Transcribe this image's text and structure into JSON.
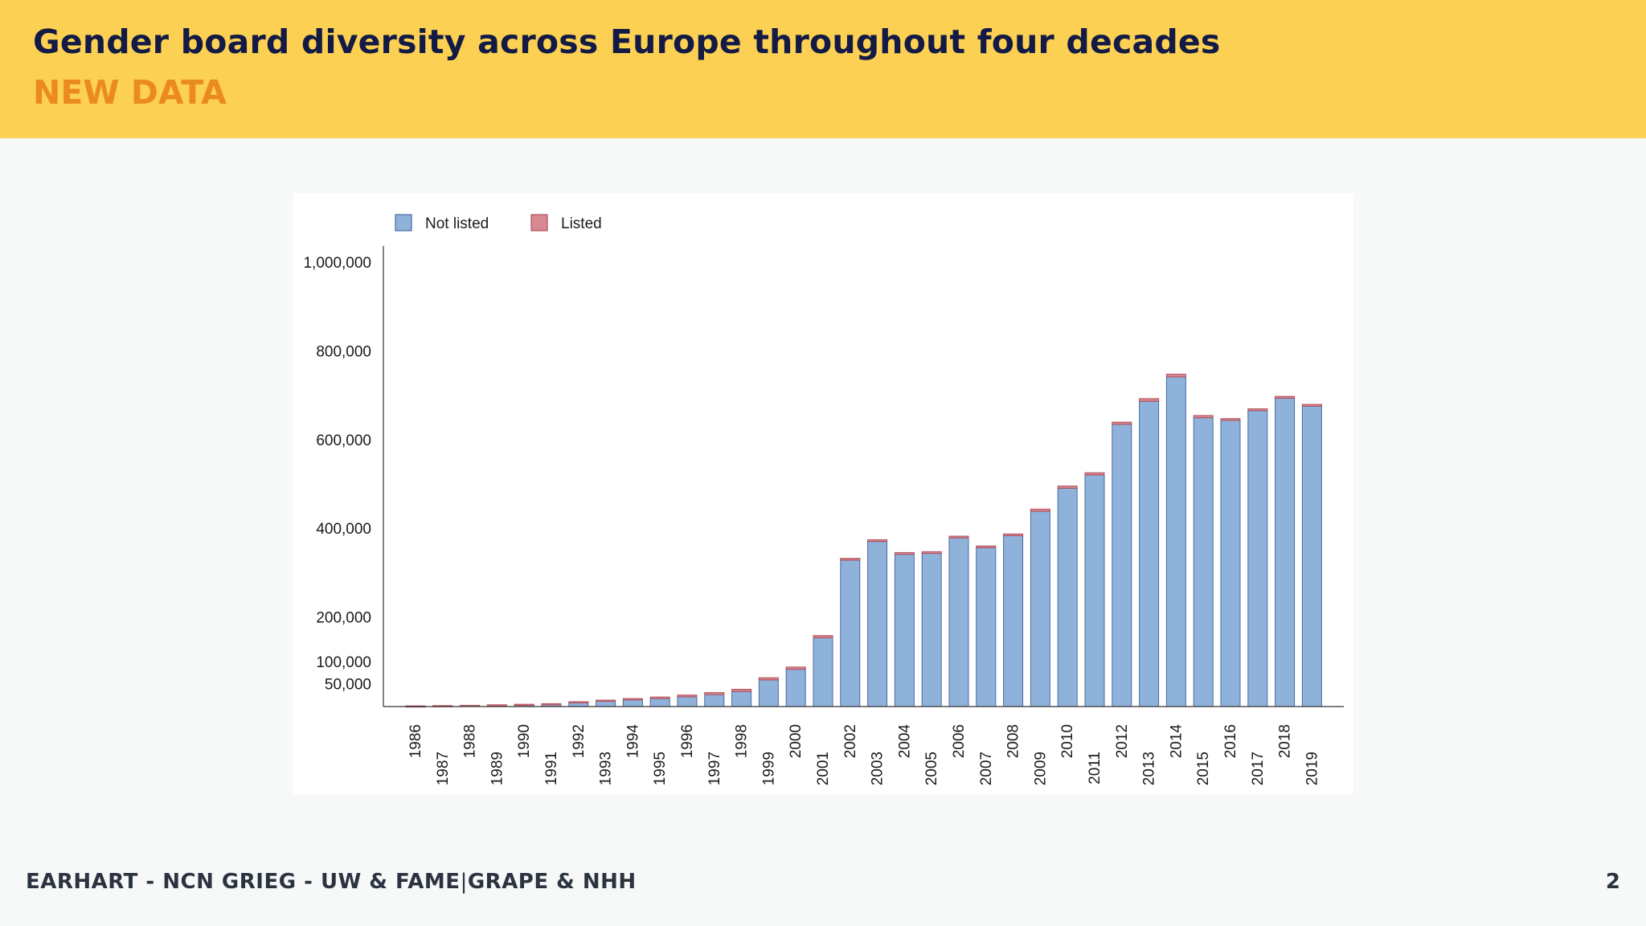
{
  "slide": {
    "title": "Gender board diversity across Europe throughout four decades",
    "subtitle": "NEW DATA",
    "footer_left": "EARHART - NCN GRIEG - UW & FAME",
    "footer_sep": "|",
    "footer_right": "GRAPE & NHH",
    "page_number": "2"
  },
  "colors": {
    "header_bg": "#fcd052",
    "title": "#121a45",
    "subtitle": "#ea8a1f",
    "not_listed_fill": "#8fb2db",
    "not_listed_stroke": "#4a6b9e",
    "listed_fill": "#d88891",
    "listed_stroke": "#b0505c"
  },
  "chart_data": {
    "type": "bar",
    "stacked": true,
    "title": "",
    "xlabel": "",
    "ylabel": "",
    "ylim": [
      0,
      1000000
    ],
    "legend_position": "top-left",
    "yticks": [
      50000,
      100000,
      200000,
      400000,
      600000,
      800000,
      1000000
    ],
    "ytick_labels": [
      "50,000",
      "100,000",
      "200,000",
      "400,000",
      "600,000",
      "800,000",
      "1,000,000"
    ],
    "categories": [
      "1986",
      "1987",
      "1988",
      "1989",
      "1990",
      "1991",
      "1992",
      "1993",
      "1994",
      "1995",
      "1996",
      "1997",
      "1998",
      "1999",
      "2000",
      "2001",
      "2002",
      "2003",
      "2004",
      "2005",
      "2006",
      "2007",
      "2008",
      "2009",
      "2010",
      "2011",
      "2012",
      "2013",
      "2014",
      "2015",
      "2016",
      "2017",
      "2018",
      "2019"
    ],
    "series": [
      {
        "name": "Not listed",
        "values": [
          1000,
          1500,
          2000,
          3000,
          4000,
          5000,
          9000,
          12000,
          15000,
          18000,
          22000,
          27000,
          34000,
          60000,
          84000,
          155000,
          330000,
          372000,
          343000,
          345000,
          380000,
          358000,
          385000,
          440000,
          492000,
          522000,
          636000,
          688000,
          743000,
          651000,
          645000,
          667000,
          695000,
          677000
        ]
      },
      {
        "name": "Listed",
        "values": [
          500,
          700,
          800,
          1000,
          1200,
          1500,
          2000,
          2500,
          3000,
          3500,
          4000,
          4500,
          5000,
          5000,
          5000,
          5000,
          4000,
          4000,
          4000,
          4000,
          4000,
          4000,
          4000,
          5000,
          5000,
          5000,
          5000,
          6000,
          6000,
          5000,
          4000,
          4000,
          4000,
          4000
        ]
      }
    ]
  }
}
